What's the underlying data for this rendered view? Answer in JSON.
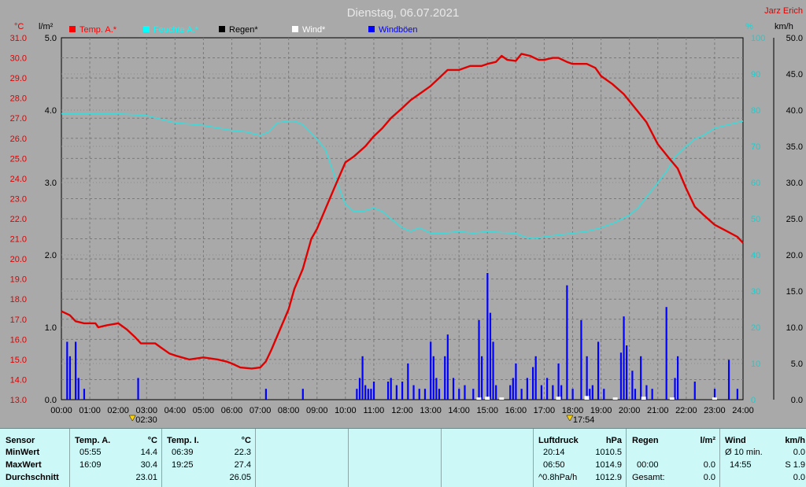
{
  "title": "Dienstag, 06.07.2021",
  "author": "Jarz Erich",
  "units": {
    "temp": "°C",
    "rain": "l/m²",
    "humidity": "%",
    "wind": "km/h"
  },
  "legend": [
    {
      "label": "Temp. A.*",
      "color": "#ff0000"
    },
    {
      "label": "Feuchte A.*",
      "color": "#00ffff"
    },
    {
      "label": "Regen*",
      "color": "#000000"
    },
    {
      "label": "Wind*",
      "color": "#ffffff"
    },
    {
      "label": "Windböen",
      "color": "#0000ff"
    }
  ],
  "colors": {
    "temp": "#e00000",
    "humidity": "#40d8d8",
    "gust": "#0000ff",
    "wind": "#ffffff",
    "background": "#a9a9a9",
    "grid": "#808080"
  },
  "markers": [
    {
      "time": "02:30"
    },
    {
      "time": "17:54"
    }
  ],
  "chart_data": {
    "type": "line",
    "x_unit": "hour",
    "x_range": [
      0,
      24
    ],
    "x_ticks": [
      "00:00",
      "01:00",
      "02:00",
      "03:00",
      "04:00",
      "05:00",
      "06:00",
      "07:00",
      "08:00",
      "09:00",
      "10:00",
      "11:00",
      "12:00",
      "13:00",
      "14:00",
      "15:00",
      "16:00",
      "17:00",
      "18:00",
      "19:00",
      "20:00",
      "21:00",
      "22:00",
      "23:00",
      "24:00"
    ],
    "axes": {
      "temp": {
        "range": [
          13.0,
          31.0
        ],
        "ticks": [
          "13.0",
          "14.0",
          "15.0",
          "16.0",
          "17.0",
          "18.0",
          "19.0",
          "20.0",
          "21.0",
          "22.0",
          "23.0",
          "24.0",
          "25.0",
          "26.0",
          "27.0",
          "28.0",
          "29.0",
          "30.0",
          "31.0"
        ]
      },
      "rain": {
        "range": [
          0,
          5
        ],
        "ticks": [
          "0.0",
          "1.0",
          "2.0",
          "3.0",
          "4.0",
          "5.0"
        ]
      },
      "humidity": {
        "range": [
          0,
          100
        ],
        "ticks": [
          "0",
          "10",
          "20",
          "30",
          "40",
          "50",
          "60",
          "70",
          "80",
          "90",
          "100"
        ]
      },
      "wind": {
        "range": [
          0,
          50
        ],
        "ticks": [
          "0.0",
          "5.0",
          "10.0",
          "15.0",
          "20.0",
          "25.0",
          "30.0",
          "35.0",
          "40.0",
          "45.0",
          "50.0"
        ]
      }
    },
    "series": [
      {
        "name": "Temp. A.*",
        "axis": "temp",
        "x": [
          0,
          0.3,
          0.5,
          0.8,
          1.2,
          1.3,
          1.6,
          2.0,
          2.3,
          2.6,
          2.8,
          3.3,
          3.5,
          3.8,
          4.0,
          4.5,
          5.0,
          5.5,
          5.8,
          6.0,
          6.3,
          6.7,
          7.0,
          7.2,
          7.4,
          7.7,
          8.0,
          8.2,
          8.5,
          8.8,
          9.0,
          9.3,
          9.6,
          10.0,
          10.3,
          10.7,
          11.0,
          11.3,
          11.6,
          12.0,
          12.3,
          12.7,
          13.0,
          13.3,
          13.6,
          14.0,
          14.4,
          14.8,
          15.0,
          15.3,
          15.5,
          15.7,
          16.0,
          16.2,
          16.5,
          16.8,
          17.0,
          17.3,
          17.5,
          17.8,
          18.0,
          18.5,
          18.8,
          19.0,
          19.4,
          19.8,
          20.2,
          20.6,
          21.0,
          21.4,
          21.7,
          22.0,
          22.3,
          22.6,
          23.0,
          23.4,
          23.8,
          24.0
        ],
        "values": [
          17.4,
          17.2,
          16.9,
          16.8,
          16.8,
          16.6,
          16.7,
          16.8,
          16.5,
          16.1,
          15.8,
          15.8,
          15.6,
          15.3,
          15.2,
          15.0,
          15.1,
          15.0,
          14.9,
          14.8,
          14.6,
          14.55,
          14.6,
          14.9,
          15.5,
          16.5,
          17.5,
          18.5,
          19.5,
          21.0,
          21.5,
          22.5,
          23.5,
          24.8,
          25.1,
          25.6,
          26.1,
          26.5,
          27.0,
          27.5,
          27.9,
          28.3,
          28.6,
          29.0,
          29.4,
          29.4,
          29.6,
          29.6,
          29.7,
          29.8,
          30.1,
          29.9,
          29.85,
          30.2,
          30.1,
          29.9,
          29.9,
          30.0,
          30.0,
          29.8,
          29.7,
          29.7,
          29.5,
          29.1,
          28.7,
          28.2,
          27.5,
          26.8,
          25.7,
          25.0,
          24.5,
          23.5,
          22.6,
          22.2,
          21.7,
          21.4,
          21.1,
          20.8
        ]
      },
      {
        "name": "Feuchte A.*",
        "axis": "humidity",
        "x": [
          0,
          1,
          2,
          3,
          4,
          5,
          6,
          6.5,
          7,
          7.3,
          7.6,
          8,
          8.2,
          8.5,
          9,
          9.3,
          9.7,
          10,
          10.3,
          10.6,
          11,
          11.3,
          11.6,
          12,
          12.3,
          12.6,
          13,
          13.5,
          14,
          14.5,
          15,
          15.5,
          16,
          16.3,
          16.6,
          17,
          17.5,
          18,
          18.5,
          19,
          19.5,
          20,
          20.3,
          20.6,
          21,
          21.3,
          21.6,
          22,
          22.3,
          22.6,
          23,
          23.5,
          24
        ],
        "values": [
          79,
          79,
          79,
          78.5,
          76.5,
          75.8,
          74.4,
          74,
          73,
          74,
          76.5,
          77,
          77,
          76,
          72,
          69,
          60,
          54,
          52,
          52,
          53,
          52,
          50,
          47.5,
          46.5,
          47.5,
          46,
          46,
          46.5,
          46,
          46.5,
          46.2,
          46,
          45,
          44.5,
          45,
          45.5,
          46,
          46.5,
          47.5,
          49,
          51,
          53,
          56,
          60,
          63,
          67,
          70,
          72,
          73,
          75,
          76,
          77
        ]
      },
      {
        "name": "Windböen",
        "axis": "wind",
        "type": "bar",
        "x": [
          0.2,
          0.3,
          0.5,
          0.6,
          0.8,
          2.7,
          7.2,
          8.5,
          10.4,
          10.5,
          10.6,
          10.7,
          10.8,
          10.9,
          11.0,
          11.5,
          11.6,
          11.8,
          12.0,
          12.2,
          12.4,
          12.6,
          12.8,
          13.0,
          13.1,
          13.2,
          13.3,
          13.5,
          13.6,
          13.8,
          14.0,
          14.2,
          14.5,
          14.7,
          14.8,
          15.0,
          15.1,
          15.2,
          15.3,
          15.8,
          15.9,
          16.0,
          16.2,
          16.4,
          16.6,
          16.7,
          16.9,
          17.1,
          17.3,
          17.5,
          17.6,
          17.8,
          18.0,
          18.3,
          18.5,
          18.6,
          18.7,
          18.9,
          19.1,
          19.7,
          19.8,
          19.9,
          20.1,
          20.2,
          20.4,
          20.6,
          20.8,
          21.3,
          21.6,
          21.7,
          22.3,
          23.0,
          23.5,
          23.8
        ],
        "values": [
          8,
          6,
          8,
          3,
          1.5,
          3,
          1.5,
          1.5,
          1.5,
          3,
          6,
          2,
          1.5,
          1.5,
          2.5,
          2.5,
          3,
          2,
          2.5,
          5,
          2,
          1.5,
          1.5,
          8,
          6,
          3,
          1.5,
          6,
          9,
          3,
          1.5,
          2,
          1.5,
          11,
          6,
          17.5,
          12,
          8,
          2,
          2,
          3,
          5,
          1.5,
          3,
          4.5,
          6,
          2,
          3,
          2,
          5,
          2,
          15.8,
          1.5,
          11,
          6,
          1.5,
          2,
          8,
          1.5,
          6.5,
          11.5,
          7.5,
          4,
          1.5,
          6,
          2,
          1.5,
          12.8,
          3,
          6,
          2.5,
          1.5,
          5.5,
          1.5
        ]
      },
      {
        "name": "Wind*",
        "axis": "wind",
        "x": [
          14.7,
          15.0,
          15.5,
          17.5,
          18.5,
          19.5,
          20.5,
          21.5,
          23.0
        ],
        "values": [
          0.2,
          0.3,
          0.2,
          0.3,
          0.4,
          0.2,
          0.3,
          0.2,
          0.2
        ]
      }
    ]
  },
  "stats": {
    "sensor": {
      "header": "Sensor",
      "rows": [
        "MinWert",
        "MaxWert",
        "Durchschnitt"
      ]
    },
    "temp_a": {
      "header": "Temp. A.",
      "unit": "°C",
      "min_time": "05:55",
      "min": "14.4",
      "max_time": "16:09",
      "max": "30.4",
      "avg": "23.01"
    },
    "temp_i": {
      "header": "Temp. I.",
      "unit": "°C",
      "min_time": "06:39",
      "min": "22.3",
      "max_time": "19:25",
      "max": "27.4",
      "avg": "26.05"
    },
    "pressure": {
      "header": "Luftdruck",
      "unit": "hPa",
      "min_time": "20:14",
      "min": "1010.5",
      "max_time": "06:50",
      "max": "1014.9",
      "trend_label": "^0.8hPa/h",
      "current": "1012.9"
    },
    "rain": {
      "header": "Regen",
      "unit": "l/m²",
      "time": "00:00",
      "value": "0.0",
      "total_label": "Gesamt:",
      "total": "0.0"
    },
    "wind": {
      "header": "Wind",
      "unit": "km/h",
      "avg_label": "Ø 10 min.",
      "avg": "0.0",
      "max_time": "14:55",
      "max": "S 1.9",
      "current": "0.0"
    }
  }
}
